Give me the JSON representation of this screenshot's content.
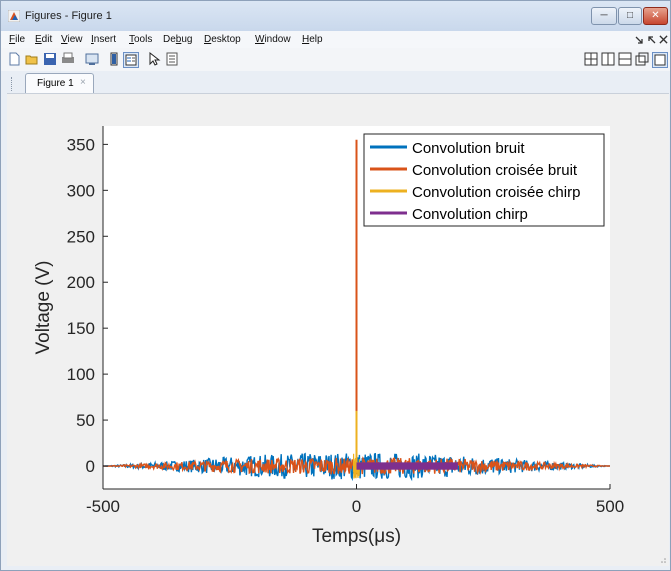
{
  "window": {
    "title": "Figures - Figure 1",
    "icon": "matlab-icon",
    "buttons": [
      "minimize-icon",
      "maximize-icon",
      "close-icon"
    ]
  },
  "menu": {
    "items": [
      "File",
      "Edit",
      "View",
      "Insert",
      "Tools",
      "Debug",
      "Desktop",
      "Window",
      "Help"
    ],
    "underlined": [
      "F",
      "E",
      "V",
      "I",
      "T",
      "b",
      "D",
      "W",
      "H"
    ],
    "right_icons": [
      "dock-arrow-icon",
      "undock-icon",
      "close-doc-icon"
    ]
  },
  "toolbar": {
    "icons": [
      "new-figure-icon",
      "open-icon",
      "save-icon",
      "print-icon",
      "link-icon",
      "insert-colorbar-icon",
      "insert-legend-icon",
      "pointer-icon",
      "property-editor-icon"
    ],
    "layout_icons": [
      "tile-icon",
      "left-right-icon",
      "top-bottom-icon",
      "float-icon",
      "maximize-doc-icon"
    ]
  },
  "tabs": [
    {
      "label": "Figure 1",
      "close": "×"
    }
  ],
  "chart_data": {
    "type": "line",
    "xlabel": "Temps(μs)",
    "ylabel": "Voltage (V)",
    "xlim": [
      -500,
      500
    ],
    "ylim": [
      -25,
      370
    ],
    "xticks": [
      -500,
      0,
      500
    ],
    "yticks": [
      0,
      50,
      100,
      150,
      200,
      250,
      300,
      350
    ],
    "grid": false,
    "legend_position": "top-right",
    "series": [
      {
        "name": "Convolution bruit",
        "color": "#0072BD",
        "description_values": "noise envelope",
        "x": [
          -500,
          -400,
          -300,
          -200,
          -100,
          0,
          100,
          200,
          300,
          400,
          500
        ],
        "y_upper": [
          0,
          4,
          8,
          12,
          14,
          15,
          14,
          12,
          8,
          4,
          0
        ],
        "y_lower": [
          0,
          -4,
          -8,
          -12,
          -14,
          -15,
          -14,
          -12,
          -8,
          -4,
          0
        ]
      },
      {
        "name": "Convolution croisée bruit",
        "color": "#D95319",
        "x": [
          -500,
          -400,
          -300,
          -200,
          -100,
          -1,
          0,
          1,
          100,
          200,
          300,
          400,
          500
        ],
        "y_upper": [
          0,
          3,
          6,
          8,
          9,
          9,
          355,
          9,
          9,
          8,
          6,
          3,
          0
        ],
        "y_lower": [
          0,
          -3,
          -6,
          -8,
          -9,
          -9,
          0,
          -9,
          -9,
          -8,
          -6,
          -3,
          0
        ]
      },
      {
        "name": "Convolution croisée chirp",
        "color": "#EDB120",
        "x": [
          -1,
          0,
          1
        ],
        "y": [
          0,
          60,
          0
        ]
      },
      {
        "name": "Convolution chirp",
        "color": "#7E2F8E",
        "x": [
          0,
          200
        ],
        "y_upper": [
          4,
          4
        ],
        "y_lower": [
          -4,
          -4
        ]
      }
    ]
  }
}
